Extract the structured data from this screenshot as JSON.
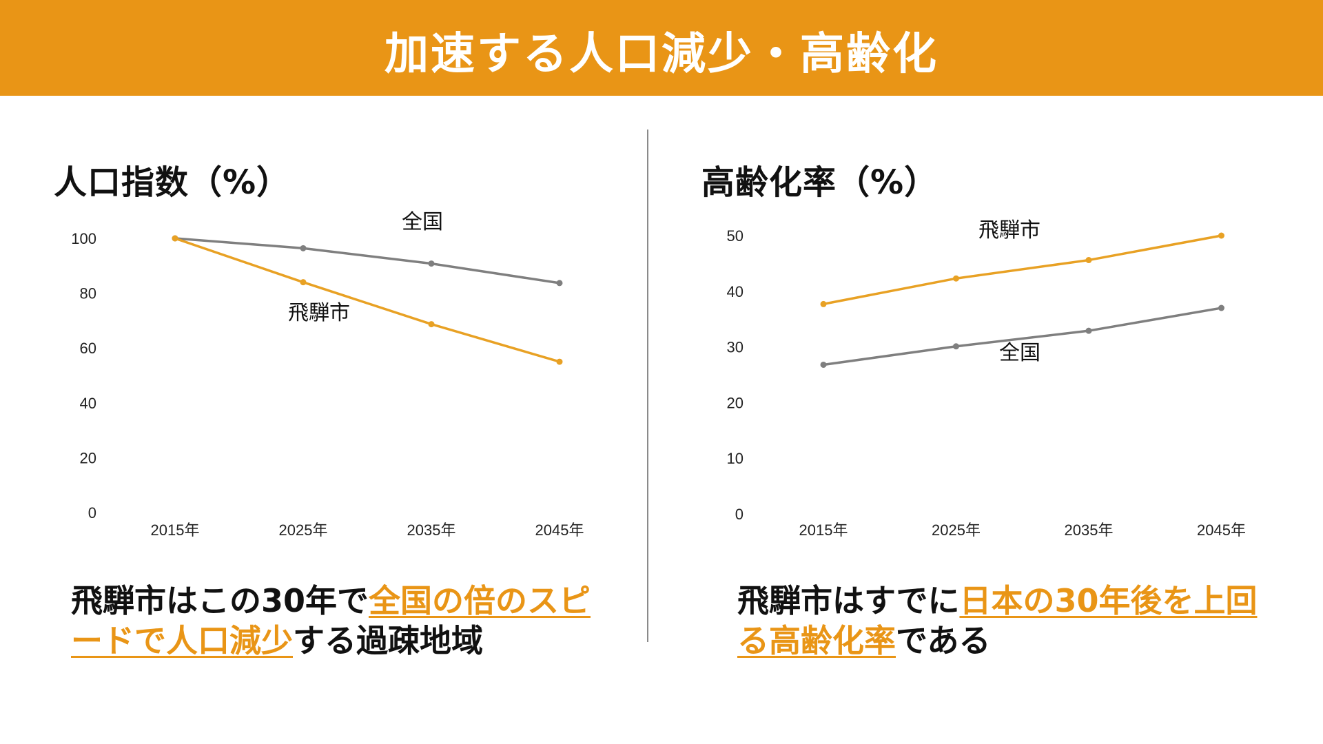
{
  "header": {
    "title": "加速する人口減少・高齢化"
  },
  "colors": {
    "accent": "#e99516",
    "national": "#7f7f7f",
    "hida": "#e8a124"
  },
  "left_panel": {
    "title": "人口指数（%）",
    "caption": {
      "part1": "飛騨市はこの30年で",
      "highlight": "全国の倍のスピードで人口減少",
      "part2": "する過疎地域"
    }
  },
  "right_panel": {
    "title": "高齢化率（%）",
    "caption": {
      "part1": "飛騨市はすでに",
      "highlight": "日本の30年後を上回る高齢化率",
      "part2": "である"
    }
  },
  "chart_data": [
    {
      "type": "line",
      "title": "人口指数（%）",
      "categories": [
        "2015年",
        "2025年",
        "2035年",
        "2045年"
      ],
      "ylim": [
        0,
        100
      ],
      "yticks": [
        0,
        20,
        40,
        60,
        80,
        100
      ],
      "grid": false,
      "legend": "inline labels",
      "series": [
        {
          "name": "全国",
          "color": "#7f7f7f",
          "values": [
            100,
            96.4,
            90.8,
            83.7
          ]
        },
        {
          "name": "飛騨市",
          "color": "#e8a124",
          "values": [
            100,
            84,
            68.7,
            55
          ]
        }
      ]
    },
    {
      "type": "line",
      "title": "高齢化率（%）",
      "categories": [
        "2015年",
        "2025年",
        "2035年",
        "2045年"
      ],
      "ylim": [
        0,
        50
      ],
      "yticks": [
        0,
        10,
        20,
        30,
        40,
        50
      ],
      "grid": false,
      "legend": "inline labels",
      "series": [
        {
          "name": "飛騨市",
          "color": "#e8a124",
          "values": [
            37.7,
            42.3,
            45.6,
            50
          ]
        },
        {
          "name": "全国",
          "color": "#7f7f7f",
          "values": [
            26.8,
            30.1,
            32.9,
            37
          ]
        }
      ]
    }
  ]
}
